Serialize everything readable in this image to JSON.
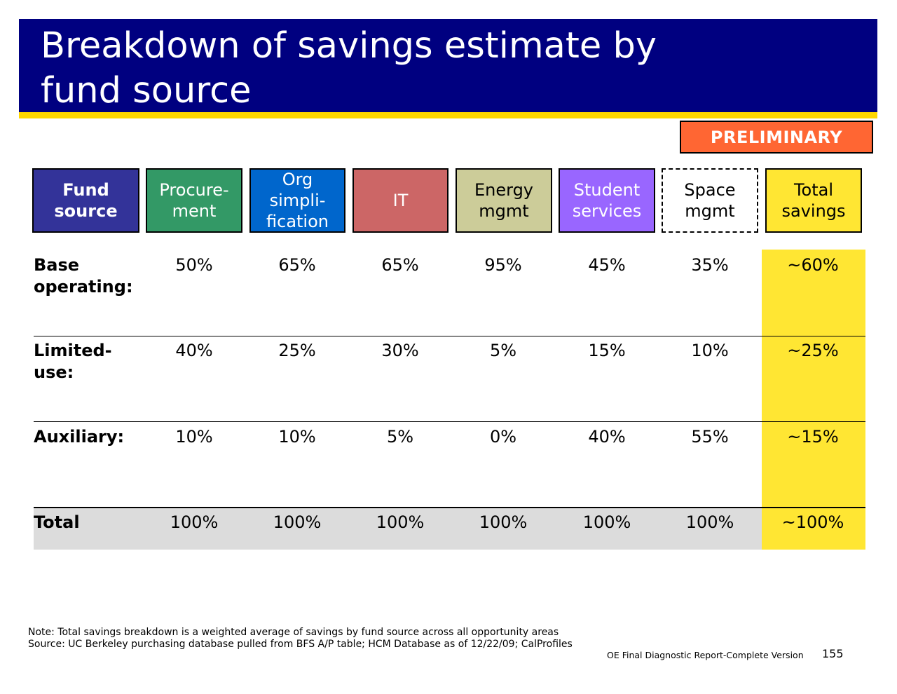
{
  "title": "Breakdown of savings estimate by\nfund source",
  "badge": "PRELIMINARY",
  "colors": {
    "title_bg": "#000080",
    "title_underline": "#FFD700",
    "badge_bg": "#FF6633",
    "total_column_bg": "#FFE633",
    "total_row_bg": "#DCDCDC"
  },
  "header_cells": [
    {
      "label": "Fund\nsource",
      "bg": "#333399",
      "color": "#FFFFFF",
      "bold": true,
      "dashed": false
    },
    {
      "label": "Procure-\nment",
      "bg": "#339966",
      "color": "#FFFFFF",
      "bold": false,
      "dashed": false
    },
    {
      "label": "Org\nsimpli-\nfication",
      "bg": "#0066CC",
      "color": "#FFFFFF",
      "bold": false,
      "dashed": false
    },
    {
      "label": "IT",
      "bg": "#CC6666",
      "color": "#FFFFFF",
      "bold": false,
      "dashed": false
    },
    {
      "label": "Energy\nmgmt",
      "bg": "#CCCC99",
      "color": "#000000",
      "bold": false,
      "dashed": false
    },
    {
      "label": "Student\nservices",
      "bg": "#9966FF",
      "color": "#FFFFFF",
      "bold": false,
      "dashed": false
    },
    {
      "label": "Space\nmgmt",
      "bg": "#FFFFFF",
      "color": "#000000",
      "bold": false,
      "dashed": true
    },
    {
      "label": "Total\nsavings",
      "bg": "#FFE633",
      "color": "#000000",
      "bold": false,
      "dashed": false
    }
  ],
  "rows": [
    {
      "label": "Base\noperating:",
      "values": [
        "50%",
        "65%",
        "65%",
        "95%",
        "45%",
        "35%",
        "~60%"
      ]
    },
    {
      "label": "Limited-\nuse:",
      "values": [
        "40%",
        "25%",
        "30%",
        "5%",
        "15%",
        "10%",
        "~25%"
      ]
    },
    {
      "label": "Auxiliary:",
      "values": [
        "10%",
        "10%",
        "5%",
        "0%",
        "40%",
        "55%",
        "~15%"
      ]
    },
    {
      "label": "Total",
      "values": [
        "100%",
        "100%",
        "100%",
        "100%",
        "100%",
        "100%",
        "~100%"
      ]
    }
  ],
  "note": "Note: Total savings breakdown is a weighted average of savings by fund source across all opportunity areas",
  "source": "Source: UC Berkeley purchasing database pulled from BFS A/P table; HCM Database as of 12/22/09; CalProfiles",
  "footer": "OE Final Diagnostic Report-Complete Version",
  "page_number": "155"
}
